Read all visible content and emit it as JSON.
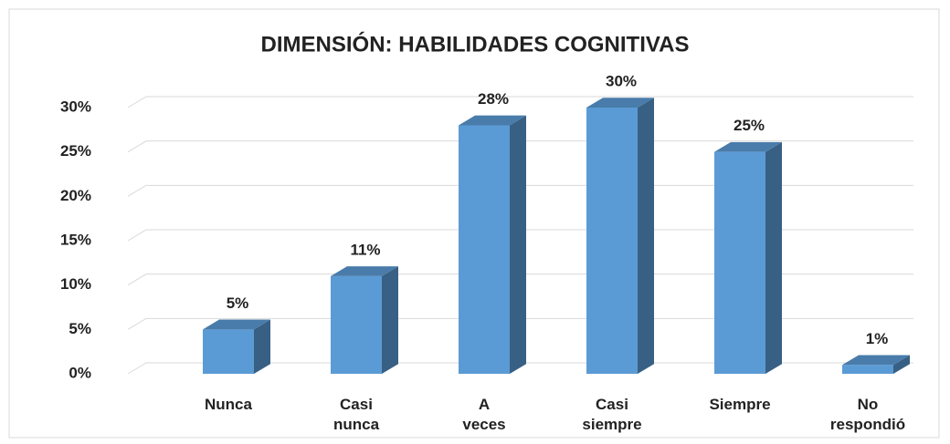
{
  "chart_data": {
    "type": "bar3d",
    "title": "DIMENSIÓN: HABILIDADES COGNITIVAS",
    "categories": [
      "Nunca",
      "Casi nunca",
      "A veces",
      "Casi siempre",
      "Siempre",
      "No respondió"
    ],
    "values": [
      5,
      11,
      28,
      30,
      25,
      1
    ],
    "value_labels": [
      "5%",
      "11%",
      "28%",
      "30%",
      "25%",
      "1%"
    ],
    "color": "#5b9bd5",
    "ylim": [
      0,
      30
    ],
    "yticks": [
      {
        "value": 0,
        "label": "0%"
      },
      {
        "value": 5,
        "label": "5%"
      },
      {
        "value": 10,
        "label": "10%"
      },
      {
        "value": 15,
        "label": "15%"
      },
      {
        "value": 20,
        "label": "20%"
      },
      {
        "value": 25,
        "label": "25%"
      },
      {
        "value": 30,
        "label": "30%"
      }
    ],
    "grid": true
  }
}
